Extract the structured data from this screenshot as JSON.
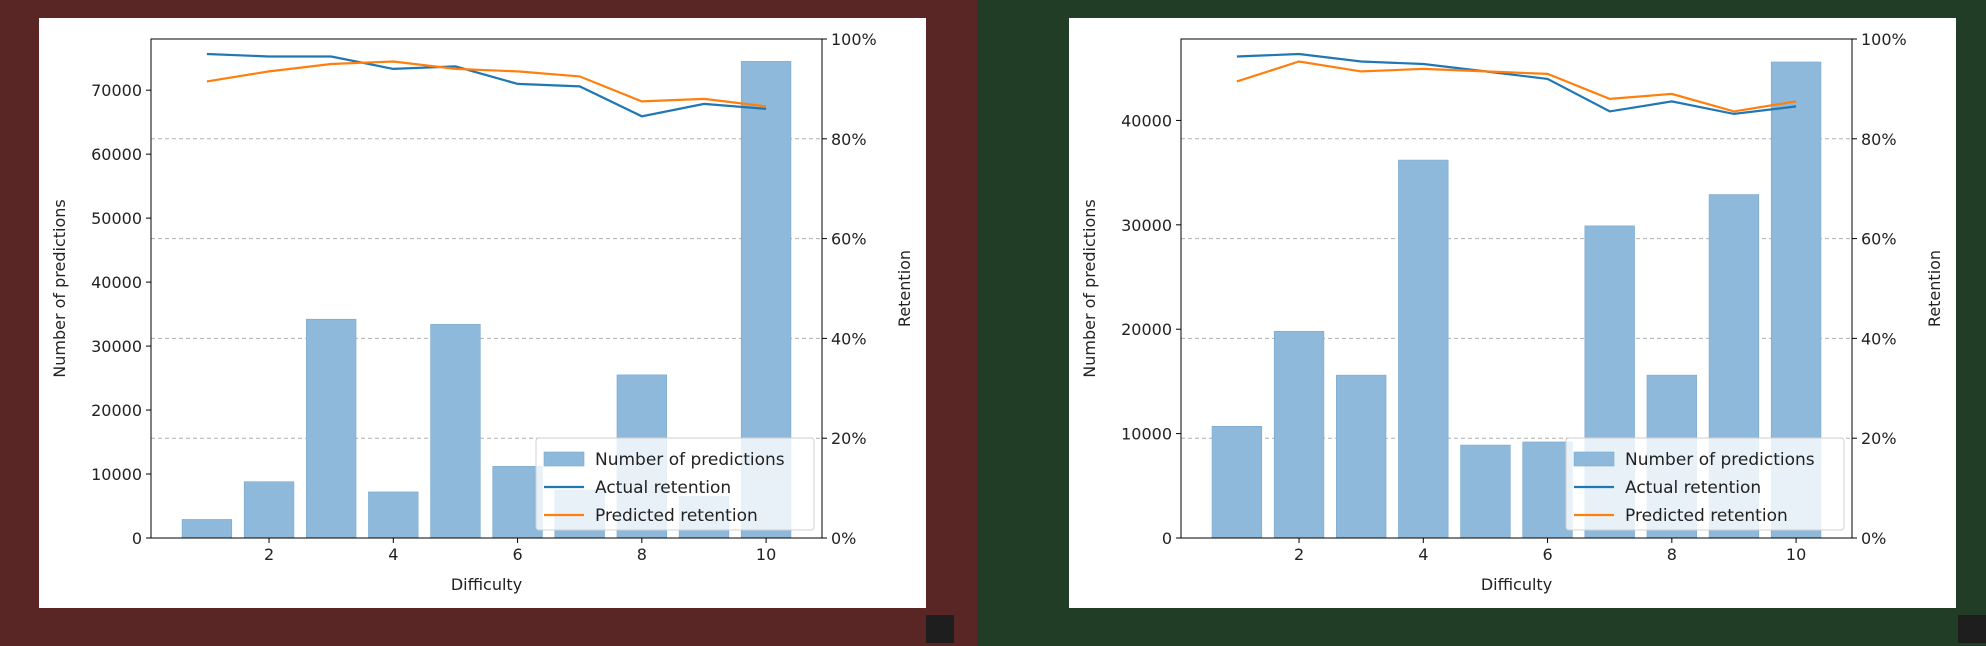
{
  "colors": {
    "left_bg": "#5a2525",
    "right_bg": "#213d25",
    "bar": "#8fb9da",
    "actual": "#1f77b4",
    "predicted": "#ff7f0e"
  },
  "chart_data": [
    {
      "type": "bar",
      "xlabel": "Difficulty",
      "ylabel_left": "Number of predictions",
      "ylabel_right": "Retention",
      "x": [
        1,
        2,
        3,
        4,
        5,
        6,
        7,
        8,
        9,
        10
      ],
      "xticks": [
        2,
        4,
        6,
        8,
        10
      ],
      "xlim": [
        0.1,
        10.9
      ],
      "ylim_left": [
        0,
        78000
      ],
      "yticks_left": [
        0,
        10000,
        20000,
        30000,
        40000,
        50000,
        60000,
        70000
      ],
      "ylim_right": [
        0,
        1
      ],
      "yticks_right": [
        0,
        0.2,
        0.4,
        0.6,
        0.8,
        1.0
      ],
      "ytick_right_labels": [
        "0%",
        "20%",
        "40%",
        "60%",
        "80%",
        "100%"
      ],
      "grid": "horizontal dashed on right axis",
      "legend_position": "lower-right",
      "series": [
        {
          "name": "Number of predictions",
          "kind": "bar",
          "values": [
            2900,
            8800,
            34200,
            7200,
            33400,
            11200,
            7500,
            25500,
            6500,
            74500
          ]
        },
        {
          "name": "Actual retention",
          "kind": "line",
          "values": [
            0.97,
            0.965,
            0.965,
            0.94,
            0.945,
            0.91,
            0.905,
            0.845,
            0.87,
            0.86
          ]
        },
        {
          "name": "Predicted retention",
          "kind": "line",
          "values": [
            0.915,
            0.935,
            0.95,
            0.955,
            0.94,
            0.935,
            0.925,
            0.875,
            0.88,
            0.865
          ]
        }
      ]
    },
    {
      "type": "bar",
      "xlabel": "Difficulty",
      "ylabel_left": "Number of predictions",
      "ylabel_right": "Retention",
      "x": [
        1,
        2,
        3,
        4,
        5,
        6,
        7,
        8,
        9,
        10
      ],
      "xticks": [
        2,
        4,
        6,
        8,
        10
      ],
      "xlim": [
        0.1,
        10.9
      ],
      "ylim_left": [
        0,
        47800
      ],
      "yticks_left": [
        0,
        10000,
        20000,
        30000,
        40000
      ],
      "ylim_right": [
        0,
        1
      ],
      "yticks_right": [
        0,
        0.2,
        0.4,
        0.6,
        0.8,
        1.0
      ],
      "ytick_right_labels": [
        "0%",
        "20%",
        "40%",
        "60%",
        "80%",
        "100%"
      ],
      "grid": "horizontal dashed on right axis",
      "legend_position": "lower-right",
      "series": [
        {
          "name": "Number of predictions",
          "kind": "bar",
          "values": [
            10700,
            19800,
            15600,
            36200,
            8900,
            9200,
            29900,
            15600,
            32900,
            45600
          ]
        },
        {
          "name": "Actual retention",
          "kind": "line",
          "values": [
            0.965,
            0.97,
            0.955,
            0.95,
            0.935,
            0.92,
            0.855,
            0.875,
            0.85,
            0.865
          ]
        },
        {
          "name": "Predicted retention",
          "kind": "line",
          "values": [
            0.915,
            0.955,
            0.935,
            0.94,
            0.935,
            0.93,
            0.88,
            0.89,
            0.855,
            0.875
          ]
        }
      ]
    }
  ]
}
